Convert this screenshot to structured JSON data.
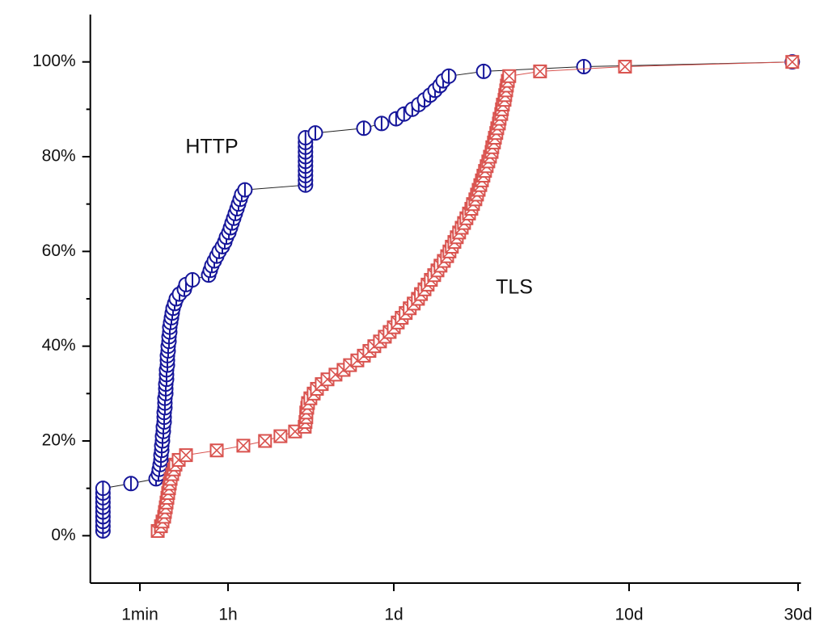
{
  "chart_data": {
    "type": "line",
    "xlim": [
      0.1,
      44000
    ],
    "xticks": [
      {
        "value": 1,
        "label": "1min"
      },
      {
        "value": 60,
        "label": "1h"
      },
      {
        "value": 1440,
        "label": "1d"
      },
      {
        "value": 14400,
        "label": "10d"
      },
      {
        "value": 43200,
        "label": "30d"
      }
    ],
    "ylim": [
      -10,
      110
    ],
    "yticks": [
      {
        "value": 0,
        "label": "0%"
      },
      {
        "value": 20,
        "label": "20%"
      },
      {
        "value": 40,
        "label": "40%"
      },
      {
        "value": 60,
        "label": "60%"
      },
      {
        "value": 80,
        "label": "80%"
      },
      {
        "value": 100,
        "label": "100%"
      }
    ],
    "yminorticks": [
      10,
      30,
      50,
      70,
      90
    ],
    "series": [
      {
        "name": "HTTP",
        "color": "#16169a",
        "marker": "circle",
        "x": [
          0.18,
          0.18,
          0.18,
          0.18,
          0.18,
          0.18,
          0.18,
          0.18,
          0.18,
          0.18,
          0.66,
          2.12,
          2.37,
          2.46,
          2.56,
          2.66,
          2.66,
          2.76,
          2.76,
          2.86,
          2.86,
          2.97,
          2.97,
          3.09,
          3.09,
          3.09,
          3.2,
          3.2,
          3.2,
          3.33,
          3.33,
          3.33,
          3.45,
          3.45,
          3.45,
          3.59,
          3.59,
          3.59,
          3.72,
          3.72,
          3.87,
          3.87,
          4.01,
          4.01,
          4.17,
          4.33,
          4.49,
          4.67,
          5.03,
          5.42,
          6.3,
          7.89,
          8.51,
          11.5,
          24.4,
          26.3,
          28.3,
          31.7,
          35.5,
          39.7,
          46.1,
          51.6,
          55.7,
          61,
          62.9,
          64.8,
          66.9,
          69,
          71.2,
          73.4,
          75.7,
          78,
          83,
          265,
          265,
          265,
          265,
          265,
          265,
          265,
          265,
          265,
          265,
          265,
          320,
          811,
          1140,
          1473,
          1593,
          1726,
          1838,
          1945,
          2056,
          2157,
          2262,
          2335,
          2467,
          3470,
          9250,
          41600
        ],
        "values": [
          1,
          2,
          3,
          4,
          5,
          6,
          7,
          8,
          9,
          10,
          11,
          12,
          13,
          14,
          15,
          16,
          17,
          18,
          19,
          20,
          21,
          22,
          23,
          24,
          25,
          26,
          27,
          28,
          29,
          30,
          31,
          32,
          33,
          34,
          35,
          36,
          37,
          38,
          39,
          40,
          41,
          42,
          43,
          44,
          45,
          46,
          47,
          48,
          49,
          50,
          51,
          52,
          53,
          54,
          55,
          56,
          57,
          58,
          59,
          60,
          61,
          62,
          63,
          64,
          65,
          66,
          67,
          68,
          69,
          70,
          71,
          72,
          73,
          74,
          75,
          76,
          77,
          78,
          79,
          80,
          81,
          82,
          83,
          84,
          85,
          86,
          87,
          88,
          89,
          90,
          91,
          92,
          93,
          94,
          95,
          96,
          97,
          98,
          99,
          100
        ]
      },
      {
        "name": "TLS",
        "color": "#d9534f",
        "marker": "square-x",
        "x": [
          2.29,
          2.66,
          2.86,
          3.09,
          3.2,
          3.33,
          3.45,
          3.59,
          3.72,
          3.87,
          4.01,
          4.17,
          4.49,
          4.84,
          5.22,
          6.07,
          8.51,
          35.5,
          80.5,
          122,
          164,
          217,
          261,
          265,
          269,
          269,
          274,
          278,
          291,
          310,
          330,
          362,
          404,
          471,
          550,
          622,
          716,
          811,
          903,
          991,
          1105,
          1213,
          1330,
          1440,
          1497,
          1556,
          1618,
          1683,
          1750,
          1824,
          1879,
          1945,
          2005,
          2070,
          2138,
          2208,
          2275,
          2350,
          2427,
          2483,
          2541,
          2606,
          2667,
          2729,
          2799,
          2864,
          2931,
          3006,
          3076,
          3126,
          3199,
          3251,
          3304,
          3357,
          3411,
          3462,
          3516,
          3573,
          3631,
          3690,
          3750,
          3776,
          3837,
          3873,
          3926,
          3963,
          4027,
          4055,
          4121,
          4150,
          4188,
          4256,
          4285,
          4325,
          4355,
          4395,
          4457,
          6026,
          13836,
          41600
        ],
        "values": [
          1,
          2,
          3,
          4,
          5,
          6,
          7,
          8,
          9,
          10,
          11,
          12,
          13,
          14,
          15,
          16,
          17,
          18,
          19,
          20,
          21,
          22,
          23,
          24,
          25,
          26,
          27,
          28,
          29,
          30,
          31,
          32,
          33,
          34,
          35,
          36,
          37,
          38,
          39,
          40,
          41,
          42,
          43,
          44,
          45,
          46,
          47,
          48,
          49,
          50,
          51,
          52,
          53,
          54,
          55,
          56,
          57,
          58,
          59,
          60,
          61,
          62,
          63,
          64,
          65,
          66,
          67,
          68,
          69,
          70,
          71,
          72,
          73,
          74,
          75,
          76,
          77,
          78,
          79,
          80,
          81,
          82,
          83,
          84,
          85,
          86,
          87,
          88,
          89,
          90,
          91,
          92,
          93,
          94,
          95,
          96,
          97,
          98,
          99,
          100
        ]
      }
    ]
  }
}
